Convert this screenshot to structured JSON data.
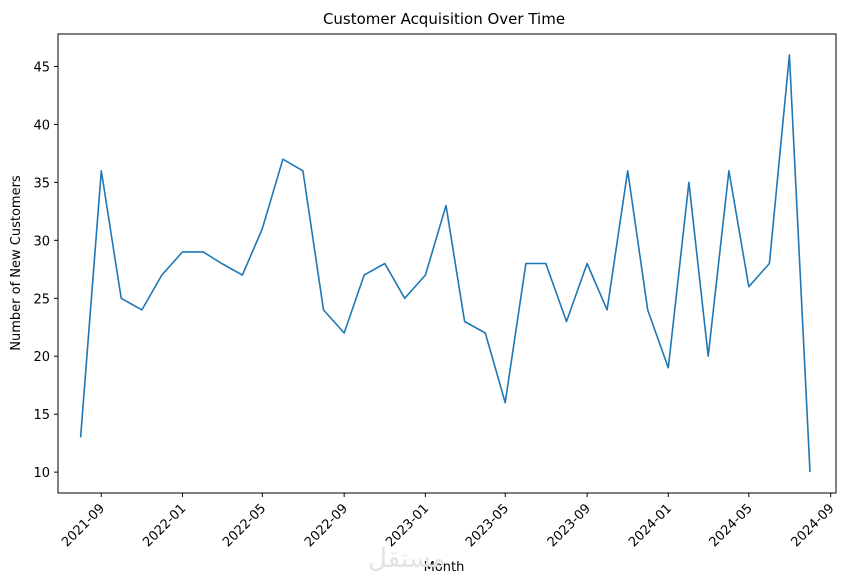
{
  "chart_data": {
    "type": "line",
    "title": "Customer Acquisition Over Time",
    "xlabel": "Month",
    "ylabel": "Number of New Customers",
    "x": [
      "2021-08",
      "2021-09",
      "2021-10",
      "2021-11",
      "2021-12",
      "2022-01",
      "2022-02",
      "2022-03",
      "2022-04",
      "2022-05",
      "2022-06",
      "2022-07",
      "2022-08",
      "2022-09",
      "2022-10",
      "2022-11",
      "2022-12",
      "2023-01",
      "2023-02",
      "2023-03",
      "2023-04",
      "2023-05",
      "2023-06",
      "2023-07",
      "2023-08",
      "2023-09",
      "2023-10",
      "2023-11",
      "2023-12",
      "2024-01",
      "2024-02",
      "2024-03",
      "2024-04",
      "2024-05",
      "2024-06",
      "2024-07",
      "2024-08"
    ],
    "series": [
      {
        "values": [
          13,
          36,
          25,
          24,
          27,
          29,
          29,
          28,
          27,
          31,
          37,
          36,
          24,
          22,
          27,
          28,
          25,
          27,
          33,
          23,
          22,
          16,
          28,
          28,
          23,
          28,
          24,
          36,
          24,
          19,
          35,
          20,
          36,
          26,
          28,
          46,
          10
        ],
        "color": "#1f77b4"
      }
    ],
    "xticks": [
      "2021-09",
      "2022-01",
      "2022-05",
      "2022-09",
      "2023-01",
      "2023-05",
      "2023-09",
      "2024-01",
      "2024-05",
      "2024-09"
    ],
    "yticks": [
      10,
      15,
      20,
      25,
      30,
      35,
      40,
      45
    ],
    "ylim": [
      8.2,
      47.8
    ],
    "xlim": [
      "2021-06-28",
      "2024-09-09"
    ],
    "grid": false
  },
  "watermark": "مستقل"
}
